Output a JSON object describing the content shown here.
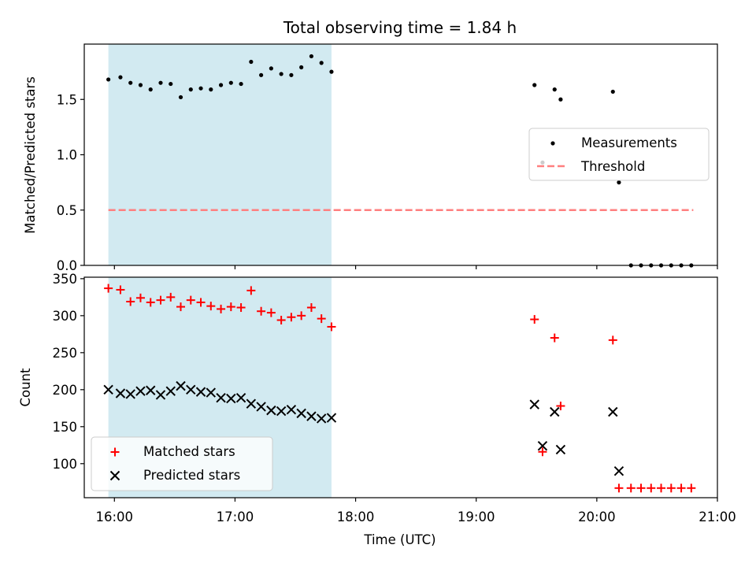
{
  "figure": {
    "title": "Total observing time = 1.84 h",
    "xlabel": "Time (UTC)",
    "x_tick_labels": [
      "16:00",
      "17:00",
      "18:00",
      "19:00",
      "20:00",
      "21:00"
    ]
  },
  "colors": {
    "span": "#add8e6",
    "measurement": "#000000",
    "threshold": "#ff7f7f",
    "matched": "#ff0000",
    "predicted": "#000000"
  },
  "chart_data": [
    {
      "type": "scatter",
      "ylabel": "Matched/Predicted stars",
      "xlim": [
        "15:45",
        "21:00"
      ],
      "ylim": [
        0,
        2.0
      ],
      "y_ticks": [
        0.0,
        0.5,
        1.0,
        1.5
      ],
      "y_tick_labels": [
        "0.0",
        "0.5",
        "1.0",
        "1.5"
      ],
      "shaded_span": [
        "15:57",
        "17:48"
      ],
      "legend": {
        "position": "center-right",
        "entries": [
          "Measurements",
          "Threshold"
        ]
      },
      "series": [
        {
          "name": "Measurements",
          "marker": "dot",
          "points": [
            [
              "15:57",
              1.68
            ],
            [
              "16:03",
              1.7
            ],
            [
              "16:08",
              1.65
            ],
            [
              "16:13",
              1.63
            ],
            [
              "16:18",
              1.59
            ],
            [
              "16:23",
              1.65
            ],
            [
              "16:28",
              1.64
            ],
            [
              "16:33",
              1.52
            ],
            [
              "16:38",
              1.59
            ],
            [
              "16:43",
              1.6
            ],
            [
              "16:48",
              1.59
            ],
            [
              "16:53",
              1.63
            ],
            [
              "16:58",
              1.65
            ],
            [
              "17:03",
              1.64
            ],
            [
              "17:08",
              1.84
            ],
            [
              "17:13",
              1.72
            ],
            [
              "17:18",
              1.78
            ],
            [
              "17:23",
              1.73
            ],
            [
              "17:28",
              1.72
            ],
            [
              "17:33",
              1.79
            ],
            [
              "17:38",
              1.89
            ],
            [
              "17:43",
              1.83
            ],
            [
              "17:48",
              1.75
            ],
            [
              "19:29",
              1.63
            ],
            [
              "19:33",
              0.93
            ],
            [
              "19:39",
              1.59
            ],
            [
              "19:42",
              1.5
            ],
            [
              "20:08",
              1.57
            ],
            [
              "20:11",
              0.75
            ],
            [
              "20:17",
              0.0
            ],
            [
              "20:22",
              0.0
            ],
            [
              "20:27",
              0.0
            ],
            [
              "20:32",
              0.0
            ],
            [
              "20:37",
              0.0
            ],
            [
              "20:42",
              0.0
            ],
            [
              "20:47",
              0.0
            ]
          ]
        },
        {
          "name": "Threshold",
          "line": "dashed",
          "points": [
            [
              "15:57",
              0.5
            ],
            [
              "20:48",
              0.5
            ]
          ]
        }
      ]
    },
    {
      "type": "scatter",
      "ylabel": "Count",
      "xlabel": "Time (UTC)",
      "xlim": [
        "15:45",
        "21:00"
      ],
      "ylim": [
        54,
        352
      ],
      "y_ticks": [
        100,
        150,
        200,
        250,
        300,
        350
      ],
      "y_tick_labels": [
        "100",
        "150",
        "200",
        "250",
        "300",
        "350"
      ],
      "shaded_span": [
        "15:57",
        "17:48"
      ],
      "legend": {
        "position": "lower-left",
        "entries": [
          "Matched stars",
          "Predicted stars"
        ]
      },
      "series": [
        {
          "name": "Matched stars",
          "marker": "plus",
          "points": [
            [
              "15:57",
              337
            ],
            [
              "16:03",
              335
            ],
            [
              "16:08",
              319
            ],
            [
              "16:13",
              324
            ],
            [
              "16:18",
              318
            ],
            [
              "16:23",
              321
            ],
            [
              "16:28",
              325
            ],
            [
              "16:33",
              312
            ],
            [
              "16:38",
              321
            ],
            [
              "16:43",
              318
            ],
            [
              "16:48",
              313
            ],
            [
              "16:53",
              309
            ],
            [
              "16:58",
              312
            ],
            [
              "17:03",
              311
            ],
            [
              "17:08",
              334
            ],
            [
              "17:13",
              306
            ],
            [
              "17:18",
              304
            ],
            [
              "17:23",
              294
            ],
            [
              "17:28",
              298
            ],
            [
              "17:33",
              300
            ],
            [
              "17:38",
              311
            ],
            [
              "17:43",
              296
            ],
            [
              "17:48",
              285
            ],
            [
              "19:29",
              295
            ],
            [
              "19:33",
              116
            ],
            [
              "19:39",
              270
            ],
            [
              "19:42",
              178
            ],
            [
              "20:08",
              267
            ],
            [
              "20:11",
              67
            ],
            [
              "20:17",
              67
            ],
            [
              "20:22",
              67
            ],
            [
              "20:27",
              67
            ],
            [
              "20:32",
              67
            ],
            [
              "20:37",
              67
            ],
            [
              "20:42",
              67
            ],
            [
              "20:47",
              67
            ]
          ]
        },
        {
          "name": "Predicted stars",
          "marker": "x",
          "points": [
            [
              "15:57",
              200
            ],
            [
              "16:03",
              195
            ],
            [
              "16:08",
              194
            ],
            [
              "16:13",
              198
            ],
            [
              "16:18",
              199
            ],
            [
              "16:23",
              193
            ],
            [
              "16:28",
              198
            ],
            [
              "16:33",
              205
            ],
            [
              "16:38",
              200
            ],
            [
              "16:43",
              197
            ],
            [
              "16:48",
              196
            ],
            [
              "16:53",
              189
            ],
            [
              "16:58",
              188
            ],
            [
              "17:03",
              189
            ],
            [
              "17:08",
              181
            ],
            [
              "17:13",
              177
            ],
            [
              "17:18",
              172
            ],
            [
              "17:23",
              171
            ],
            [
              "17:28",
              173
            ],
            [
              "17:33",
              168
            ],
            [
              "17:38",
              164
            ],
            [
              "17:43",
              161
            ],
            [
              "17:48",
              162
            ],
            [
              "19:29",
              180
            ],
            [
              "19:33",
              124
            ],
            [
              "19:39",
              170
            ],
            [
              "19:42",
              119
            ],
            [
              "20:08",
              170
            ],
            [
              "20:11",
              90
            ]
          ]
        }
      ]
    }
  ]
}
